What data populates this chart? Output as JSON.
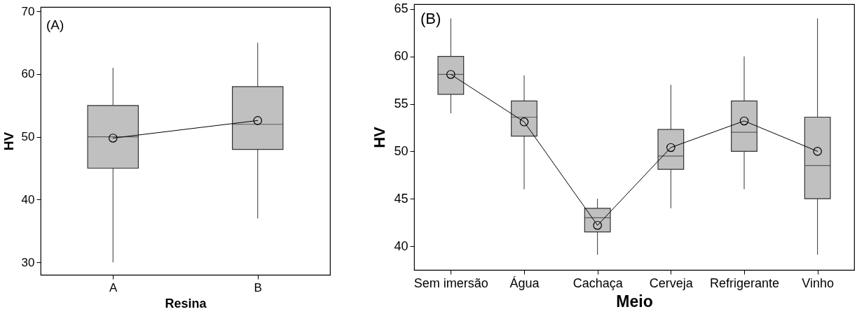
{
  "chart_data": [
    {
      "type": "box",
      "annotations": [
        "(A)"
      ],
      "xlabel": "Resina",
      "ylabel": "HV",
      "categories": [
        "A",
        "B"
      ],
      "ylim": [
        28,
        70.7
      ],
      "yticks": [
        30,
        40,
        50,
        60,
        70
      ],
      "series": [
        {
          "type": "box",
          "color": "#c0c0c0",
          "boxes": [
            {
              "low": 30,
              "q1": 45,
              "median": 50,
              "q3": 55,
              "high": 61
            },
            {
              "low": 37,
              "q1": 48,
              "median": 52,
              "q3": 58,
              "high": 65
            }
          ]
        },
        {
          "type": "line",
          "color": "#000000",
          "values": [
            49.8,
            52.6
          ],
          "marker": "circle"
        }
      ]
    },
    {
      "type": "box",
      "annotations": [
        "(B)"
      ],
      "xlabel": "Meio",
      "ylabel": "HV",
      "categories": [
        "Sem imersão",
        "Água",
        "Cachaça",
        "Cerveja",
        "Refrigerante",
        "Vinho"
      ],
      "ylim": [
        37.5,
        65.5
      ],
      "yticks": [
        40,
        45,
        50,
        55,
        60,
        65
      ],
      "series": [
        {
          "type": "box",
          "color": "#c0c0c0",
          "boxes": [
            {
              "low": 54,
              "q1": 56,
              "median": 58.1,
              "q3": 60,
              "high": 64
            },
            {
              "low": 46,
              "q1": 51.6,
              "median": 53.6,
              "q3": 55.3,
              "high": 58
            },
            {
              "low": 39.1,
              "q1": 41.5,
              "median": 43,
              "q3": 44,
              "high": 45
            },
            {
              "low": 44,
              "q1": 48.1,
              "median": 49.5,
              "q3": 52.3,
              "high": 57
            },
            {
              "low": 46,
              "q1": 50,
              "median": 52,
              "q3": 55.3,
              "high": 60
            },
            {
              "low": 39.1,
              "q1": 45,
              "median": 48.5,
              "q3": 53.6,
              "high": 64
            }
          ]
        },
        {
          "type": "line",
          "color": "#000000",
          "values": [
            58.1,
            53.1,
            42.2,
            50.4,
            53.2,
            50
          ],
          "marker": "circle"
        }
      ]
    }
  ]
}
